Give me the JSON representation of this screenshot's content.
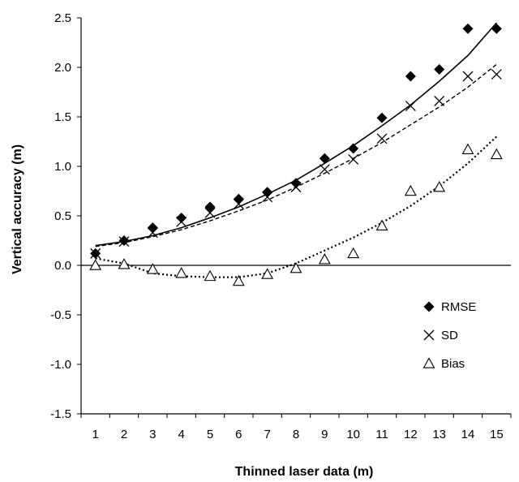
{
  "chart_data": {
    "type": "scatter",
    "title": "",
    "xlabel": "Thinned laser data (m)",
    "ylabel": "Vertical accuracy (m)",
    "x": [
      1,
      2,
      3,
      4,
      5,
      6,
      7,
      8,
      9,
      10,
      11,
      12,
      13,
      14,
      15
    ],
    "xlim": [
      0.5,
      15.5
    ],
    "ylim": [
      -1.5,
      2.5
    ],
    "yticks": [
      "-1.5",
      "-1.0",
      "-0.5",
      "0.0",
      "0.5",
      "1.0",
      "1.5",
      "2.0",
      "2.5"
    ],
    "ytick_values": [
      -1.5,
      -1.0,
      -0.5,
      0.0,
      0.5,
      1.0,
      1.5,
      2.0,
      2.5
    ],
    "xticks": [
      "1",
      "2",
      "3",
      "4",
      "5",
      "6",
      "7",
      "8",
      "9",
      "10",
      "11",
      "12",
      "13",
      "14",
      "15"
    ],
    "grid": false,
    "legend_position": "bottom-right",
    "series": [
      {
        "name": "RMSE",
        "marker": "diamond",
        "values": [
          0.12,
          0.25,
          0.38,
          0.48,
          0.59,
          0.67,
          0.74,
          0.83,
          1.08,
          1.18,
          1.49,
          1.91,
          1.98,
          2.39,
          2.39
        ],
        "trend": {
          "style": "solid",
          "x": [
            1,
            2,
            3,
            4,
            5,
            6,
            7,
            8,
            9,
            10,
            11,
            12,
            13,
            14,
            15
          ],
          "y": [
            0.2,
            0.24,
            0.3,
            0.38,
            0.48,
            0.59,
            0.72,
            0.86,
            1.03,
            1.21,
            1.41,
            1.62,
            1.86,
            2.12,
            2.45
          ]
        }
      },
      {
        "name": "SD",
        "marker": "x",
        "values": [
          0.12,
          0.24,
          0.33,
          0.44,
          0.53,
          0.62,
          0.69,
          0.79,
          0.97,
          1.07,
          1.28,
          1.61,
          1.66,
          1.91,
          1.93
        ],
        "trend": {
          "style": "dashed",
          "x": [
            1,
            2,
            3,
            4,
            5,
            6,
            7,
            8,
            9,
            10,
            11,
            12,
            13,
            14,
            15
          ],
          "y": [
            0.19,
            0.23,
            0.29,
            0.36,
            0.45,
            0.55,
            0.66,
            0.79,
            0.93,
            1.08,
            1.24,
            1.42,
            1.6,
            1.8,
            2.03
          ]
        }
      },
      {
        "name": "Bias",
        "marker": "triangle",
        "values": [
          0.0,
          0.01,
          -0.04,
          -0.08,
          -0.11,
          -0.16,
          -0.09,
          -0.03,
          0.06,
          0.12,
          0.4,
          0.75,
          0.79,
          1.17,
          1.12
        ],
        "trend": {
          "style": "dotted",
          "x": [
            1,
            2,
            3,
            4,
            5,
            6,
            7,
            8,
            9,
            10,
            11,
            12,
            13,
            14,
            15
          ],
          "y": [
            0.07,
            0.02,
            -0.08,
            -0.11,
            -0.12,
            -0.12,
            -0.08,
            0.02,
            0.15,
            0.28,
            0.43,
            0.6,
            0.8,
            1.03,
            1.3
          ]
        }
      }
    ]
  }
}
